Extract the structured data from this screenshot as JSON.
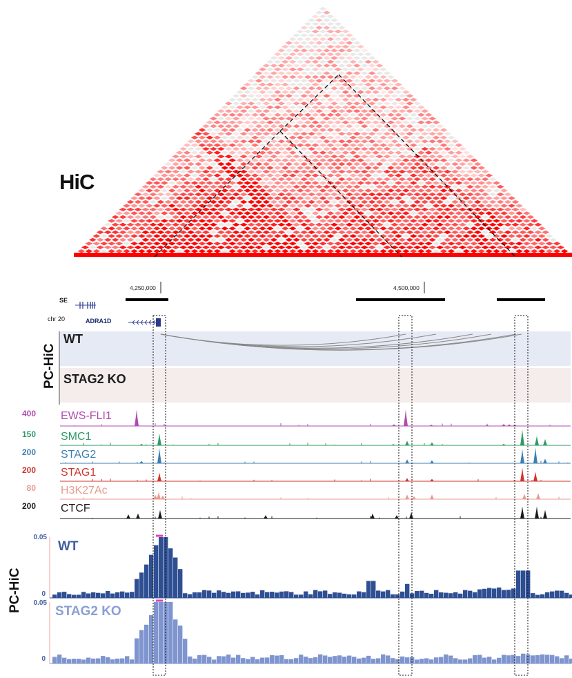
{
  "title": "HiC",
  "coordinates": {
    "left": "4,250,000",
    "right": "4,500,000"
  },
  "annotation": {
    "se_label": "SE",
    "chrom": "chr 20",
    "gene": "ADRA1D"
  },
  "pchic_label": "PC-HiC",
  "conditions": {
    "wt": "WT",
    "ko": "STAG2 KO"
  },
  "tracks": [
    {
      "name": "EWS-FLI1",
      "scale": "400",
      "color": "#b04bb0"
    },
    {
      "name": "SMC1",
      "scale": "150",
      "color": "#2e9a66"
    },
    {
      "name": "STAG2",
      "scale": "200",
      "color": "#3d7fb0"
    },
    {
      "name": "STAG1",
      "scale": "200",
      "color": "#d0342c"
    },
    {
      "name": "H3K27Ac",
      "scale": "80",
      "color": "#e89a8e"
    },
    {
      "name": "CTCF",
      "scale": "200",
      "color": "#1a1a1a"
    }
  ],
  "bottom": {
    "label": "PC-HiC",
    "wt": "WT",
    "ko": "STAG2 KO",
    "ymax": "0.05",
    "ymin": "0"
  },
  "colors": {
    "heat": "#ff0000",
    "wt_bars": "#2f4f93",
    "ko_bars": "#7f95cf"
  }
}
